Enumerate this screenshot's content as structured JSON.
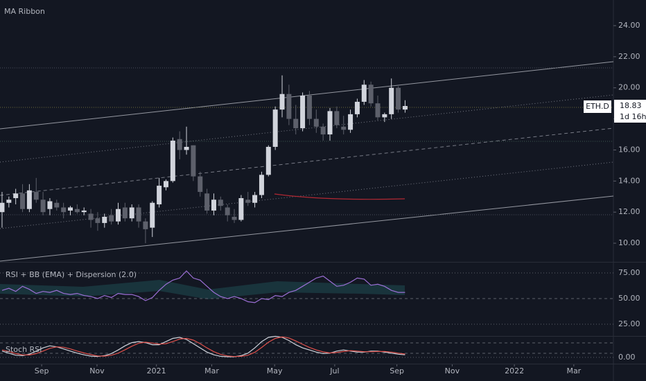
{
  "chart_data": [
    {
      "type": "candlestick",
      "title": "MA Ribbon",
      "symbol": "ETH.D",
      "countdown": "1d 16h",
      "up_color": "#d1d4dc",
      "down_color": "#5d606b",
      "x": [
        0,
        1,
        2,
        3,
        4,
        5,
        6,
        7,
        8,
        9,
        10,
        11,
        12,
        13,
        14,
        15,
        16,
        17,
        18,
        19,
        20,
        21,
        22,
        23,
        24,
        25,
        26,
        27,
        28,
        29,
        30,
        31,
        32,
        33,
        34,
        35,
        36,
        37,
        38,
        39,
        40,
        41,
        42,
        43,
        44,
        45,
        46,
        47,
        48,
        49,
        50,
        51,
        52,
        53,
        54,
        55,
        56,
        57,
        58,
        59
      ],
      "open": [
        12.0,
        12.6,
        12.9,
        13.2,
        12.2,
        13.3,
        12.8,
        12.2,
        12.6,
        12.3,
        12.1,
        12.2,
        12.0,
        11.9,
        11.6,
        11.3,
        11.8,
        11.4,
        12.3,
        11.6,
        12.3,
        11.4,
        11.0,
        12.5,
        13.6,
        14.0,
        16.7,
        16.0,
        16.3,
        14.3,
        13.2,
        12.1,
        12.8,
        12.3,
        11.7,
        11.5,
        12.8,
        12.6,
        13.1,
        14.4,
        16.2,
        18.6,
        19.6,
        18.0,
        17.4,
        19.5,
        18.0,
        17.5,
        17.0,
        18.5,
        17.5,
        17.3,
        18.3,
        19.1,
        20.2,
        19.0,
        18.1,
        18.3,
        20.0,
        18.6
      ],
      "high": [
        13.3,
        13.0,
        13.5,
        13.8,
        13.8,
        14.2,
        13.3,
        12.9,
        12.8,
        12.6,
        12.4,
        12.5,
        12.3,
        12.2,
        12.0,
        11.9,
        12.2,
        12.6,
        12.6,
        12.5,
        12.5,
        11.6,
        12.7,
        14.2,
        14.1,
        16.8,
        17.2,
        17.5,
        16.3,
        14.6,
        13.5,
        13.2,
        13.0,
        12.5,
        12.2,
        13.1,
        13.3,
        13.3,
        14.6,
        16.3,
        18.8,
        20.8,
        20.2,
        18.9,
        19.7,
        19.8,
        18.6,
        17.7,
        18.7,
        18.8,
        18.2,
        18.6,
        19.3,
        20.5,
        20.4,
        19.5,
        18.4,
        20.6,
        20.1,
        19.2
      ],
      "low": [
        11.0,
        12.3,
        12.5,
        12.0,
        12.0,
        12.6,
        11.8,
        11.8,
        12.1,
        11.6,
        11.8,
        11.9,
        11.8,
        11.0,
        10.8,
        11.0,
        11.2,
        11.2,
        11.4,
        11.4,
        11.0,
        10.0,
        10.4,
        12.3,
        13.4,
        13.9,
        15.4,
        15.7,
        14.0,
        13.0,
        11.9,
        11.8,
        12.1,
        11.4,
        11.3,
        11.4,
        12.4,
        12.3,
        12.9,
        14.3,
        16.0,
        18.1,
        17.6,
        17.0,
        17.2,
        17.6,
        17.1,
        16.6,
        16.6,
        17.4,
        17.0,
        17.1,
        18.1,
        18.9,
        18.8,
        17.9,
        17.8,
        18.0,
        18.4,
        18.4
      ],
      "close": [
        12.6,
        12.8,
        13.2,
        12.2,
        13.4,
        12.8,
        12.0,
        12.7,
        12.3,
        12.0,
        12.3,
        12.0,
        12.1,
        11.5,
        11.3,
        11.7,
        11.4,
        12.2,
        11.6,
        12.3,
        11.4,
        10.9,
        12.6,
        13.7,
        14.0,
        16.6,
        16.0,
        16.2,
        14.3,
        13.3,
        12.1,
        12.8,
        12.4,
        11.8,
        11.5,
        12.9,
        12.6,
        13.1,
        14.4,
        16.2,
        18.6,
        19.6,
        18.0,
        17.4,
        19.5,
        18.0,
        17.5,
        17.0,
        18.5,
        17.6,
        17.3,
        18.3,
        19.1,
        20.2,
        19.0,
        18.1,
        18.3,
        20.0,
        18.6,
        18.83
      ],
      "xlim": [
        -0.3,
        89.5
      ],
      "ylim": [
        8.8,
        25.65
      ],
      "yticks": [
        {
          "value": 10,
          "label": "10.00"
        },
        {
          "value": 12,
          "label": "12.00"
        },
        {
          "value": 14,
          "label": "14.00"
        },
        {
          "value": 16,
          "label": "16.00"
        },
        {
          "value": 18,
          "label": "18.00"
        },
        {
          "value": 20,
          "label": "20.00"
        },
        {
          "value": 22,
          "label": "22.00"
        },
        {
          "value": 24,
          "label": "24.00"
        }
      ],
      "xticks": [
        {
          "value": 5.8,
          "label": "Sep"
        },
        {
          "value": 13.9,
          "label": "Nov"
        },
        {
          "value": 22.6,
          "label": "2021"
        },
        {
          "value": 30.7,
          "label": "Mar"
        },
        {
          "value": 39.9,
          "label": "May"
        },
        {
          "value": 48.7,
          "label": "Jul"
        },
        {
          "value": 57.8,
          "label": "Sep"
        },
        {
          "value": 65.9,
          "label": "Nov"
        },
        {
          "value": 75.0,
          "label": "2022"
        },
        {
          "value": 83.7,
          "label": "Mar"
        }
      ]
    },
    {
      "type": "line",
      "title": "RSI + BB (EMA) + Dispersion (2.0)",
      "x": [
        0,
        1,
        2,
        3,
        4,
        5,
        6,
        7,
        8,
        9,
        10,
        11,
        12,
        13,
        14,
        15,
        16,
        17,
        18,
        19,
        20,
        21,
        22,
        23,
        24,
        25,
        26,
        27,
        28,
        29,
        30,
        31,
        32,
        33,
        34,
        35,
        36,
        37,
        38,
        39,
        40,
        41,
        42,
        43,
        44,
        45,
        46,
        47,
        48,
        49,
        50,
        51,
        52,
        53,
        54,
        55,
        56,
        57,
        58,
        59
      ],
      "series": [
        {
          "color": "#9c6fd6",
          "values": [
            58,
            60,
            57,
            62,
            59,
            55,
            57,
            56,
            58,
            55,
            54,
            55,
            53,
            52,
            50,
            53,
            51,
            55,
            54,
            54,
            52,
            48,
            51,
            58,
            64,
            68,
            70,
            77,
            70,
            68,
            62,
            56,
            52,
            50,
            52,
            50,
            47,
            46,
            50,
            49,
            53,
            52,
            56,
            58,
            62,
            66,
            70,
            72,
            67,
            62,
            63,
            66,
            70,
            69,
            63,
            64,
            62,
            58,
            56,
            56
          ]
        }
      ],
      "xlim": [
        -0.3,
        89.5
      ],
      "ylim": [
        13.5,
        84.5
      ],
      "yticks": [
        {
          "value": 25,
          "label": "25.00"
        },
        {
          "value": 50,
          "label": "50.00"
        },
        {
          "value": 75,
          "label": "75.00"
        }
      ]
    },
    {
      "type": "line",
      "title": "Stoch RSI",
      "x": [
        0,
        1,
        2,
        3,
        4,
        5,
        6,
        7,
        8,
        9,
        10,
        11,
        12,
        13,
        14,
        15,
        16,
        17,
        18,
        19,
        20,
        21,
        22,
        23,
        24,
        25,
        26,
        27,
        28,
        29,
        30,
        31,
        32,
        33,
        34,
        35,
        36,
        37,
        38,
        39,
        40,
        41,
        42,
        43,
        44,
        45,
        46,
        47,
        48,
        49,
        50,
        51,
        52,
        53,
        54,
        55,
        56,
        57,
        58,
        59
      ],
      "series": [
        {
          "color": "#d1d4dc",
          "values": [
            30,
            20,
            10,
            8,
            15,
            30,
            45,
            55,
            50,
            40,
            30,
            20,
            12,
            6,
            4,
            8,
            18,
            35,
            55,
            70,
            75,
            70,
            60,
            60,
            75,
            90,
            95,
            85,
            65,
            45,
            25,
            12,
            5,
            3,
            3,
            8,
            20,
            45,
            75,
            95,
            100,
            95,
            80,
            60,
            45,
            35,
            25,
            18,
            20,
            30,
            35,
            30,
            25,
            25,
            30,
            30,
            25,
            20,
            15,
            12
          ]
        },
        {
          "color": "#e0504b",
          "values": [
            35,
            28,
            18,
            12,
            11,
            18,
            30,
            43,
            50,
            48,
            40,
            30,
            21,
            13,
            7,
            6,
            10,
            20,
            36,
            53,
            67,
            72,
            68,
            63,
            65,
            75,
            87,
            90,
            82,
            65,
            45,
            27,
            14,
            7,
            4,
            5,
            10,
            24,
            47,
            72,
            90,
            97,
            92,
            78,
            62,
            47,
            35,
            26,
            21,
            23,
            28,
            32,
            30,
            27,
            27,
            28,
            28,
            25,
            20,
            16
          ]
        }
      ],
      "xlim": [
        -0.3,
        89.5
      ],
      "ylim": [
        -30,
        95
      ],
      "yticks": [
        {
          "value": 0,
          "label": "0.00"
        }
      ]
    }
  ]
}
